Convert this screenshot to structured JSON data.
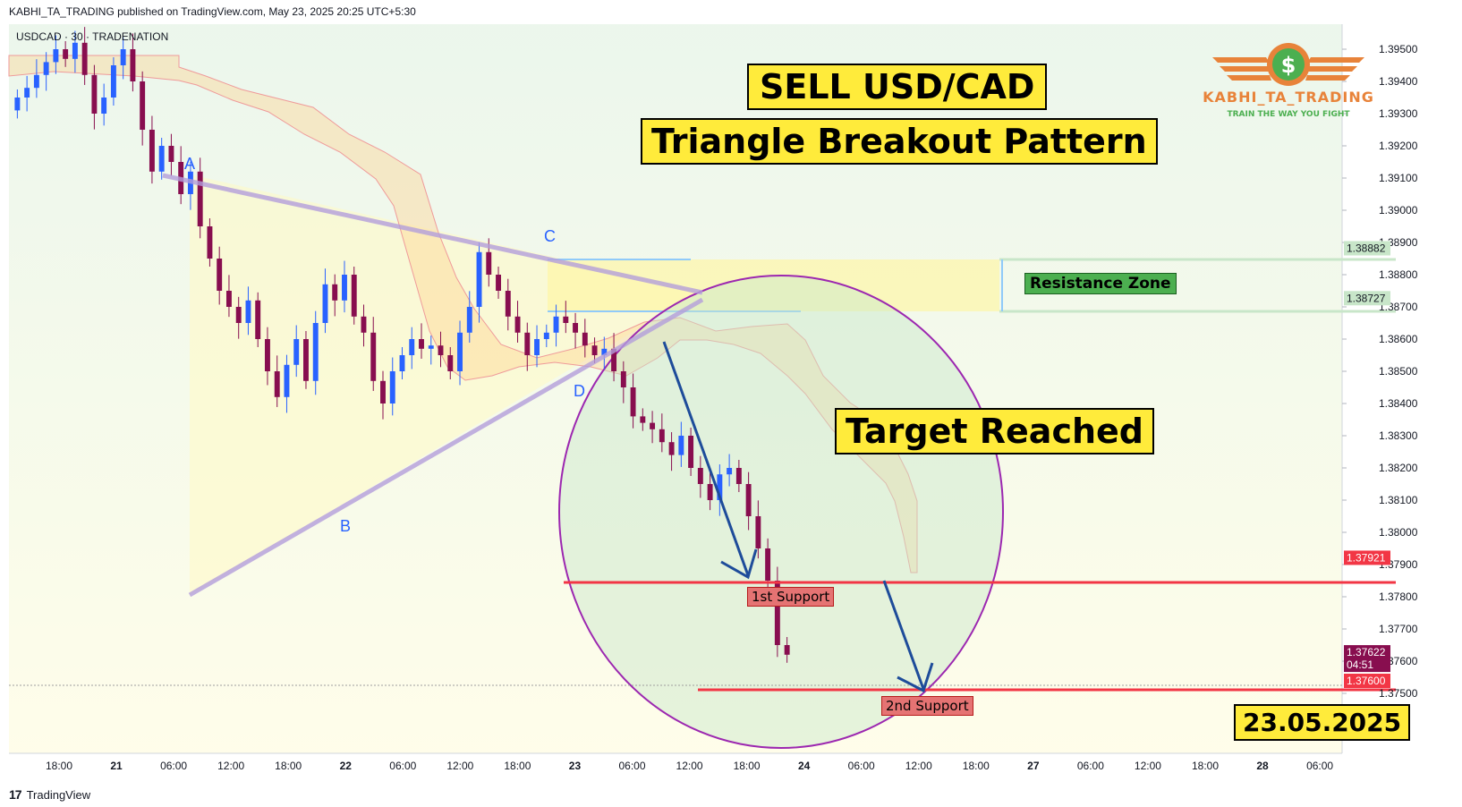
{
  "header": {
    "publish_line": "KABHI_TA_TRADING published on TradingView.com, May 23, 2025 20:25 UTC+5:30",
    "symbol_line": "USDCAD · 30 · TRADENATION"
  },
  "footer": {
    "logo": "17",
    "brand": "TradingView"
  },
  "branding": {
    "name": "KABHI_TA_TRADING",
    "tagline": "TRAIN THE WAY YOU FIGHT",
    "icon": "dollar-coin-wings-icon"
  },
  "annotations": {
    "title_1": "SELL USD/CAD",
    "title_2": "Triangle Breakout Pattern",
    "target": "Target Reached",
    "date": "23.05.2025",
    "resistance": "Resistance Zone",
    "support_1": "1st Support",
    "support_2": "2nd Support",
    "points": [
      "A",
      "B",
      "C",
      "D"
    ]
  },
  "colors": {
    "background": "#ffffff",
    "bull_candle": "#2962ff",
    "bear_candle": "#880e4f",
    "support_line": "#f23645",
    "resistance_line": "#90caf9",
    "ellipse": "#9c27b0",
    "arrow": "#1e4c9a",
    "triangle": "#b39ddb"
  },
  "chart_data": {
    "type": "candlestick",
    "symbol": "USDCAD",
    "interval": "30",
    "ylim": [
      1.3745,
      1.396
    ],
    "y_ticks": [
      "1.39500",
      "1.39400",
      "1.39300",
      "1.39200",
      "1.39100",
      "1.39000",
      "1.38900",
      "1.38800",
      "1.38700",
      "1.38600",
      "1.38500",
      "1.38400",
      "1.38300",
      "1.38200",
      "1.38100",
      "1.38000",
      "1.37900",
      "1.37800",
      "1.37700",
      "1.37600",
      "1.37500"
    ],
    "x_ticks": [
      "18:00",
      "21",
      "06:00",
      "12:00",
      "18:00",
      "22",
      "06:00",
      "12:00",
      "18:00",
      "23",
      "06:00",
      "12:00",
      "18:00",
      "24",
      "06:00",
      "12:00",
      "18:00",
      "27",
      "06:00",
      "12:00",
      "18:00",
      "28",
      "06:00"
    ],
    "price_labels": [
      {
        "value": "1.38882",
        "style": "resistance"
      },
      {
        "value": "1.38727",
        "style": "resistance"
      },
      {
        "value": "1.37921",
        "style": "support"
      },
      {
        "value": "1.37622",
        "style": "current"
      },
      {
        "value": "04:51",
        "style": "countdown"
      },
      {
        "value": "1.37600",
        "style": "support"
      }
    ],
    "levels": {
      "resistance_top": 1.38882,
      "resistance_bottom": 1.38727,
      "support_1": 1.37921,
      "support_2": 1.376,
      "last": 1.37622
    },
    "close": [
      1.3935,
      1.3938,
      1.3942,
      1.3946,
      1.395,
      1.3947,
      1.3952,
      1.3942,
      1.393,
      1.3935,
      1.3945,
      1.395,
      1.394,
      1.3925,
      1.3912,
      1.392,
      1.3915,
      1.3905,
      1.3912,
      1.3895,
      1.3885,
      1.3875,
      1.387,
      1.3865,
      1.3872,
      1.386,
      1.385,
      1.3842,
      1.3852,
      1.386,
      1.3847,
      1.3865,
      1.3877,
      1.3872,
      1.388,
      1.3867,
      1.3862,
      1.3847,
      1.384,
      1.385,
      1.3855,
      1.386,
      1.3857,
      1.3858,
      1.3855,
      1.385,
      1.3862,
      1.387,
      1.3887,
      1.388,
      1.3875,
      1.3867,
      1.3862,
      1.3855,
      1.386,
      1.3862,
      1.3867,
      1.3865,
      1.3862,
      1.3858,
      1.3855,
      1.3857,
      1.385,
      1.3845,
      1.3836,
      1.3834,
      1.3832,
      1.3828,
      1.3824,
      1.383,
      1.382,
      1.3815,
      1.381,
      1.3818,
      1.382,
      1.3815,
      1.3805,
      1.3795,
      1.3785,
      1.3765,
      1.3762
    ]
  }
}
